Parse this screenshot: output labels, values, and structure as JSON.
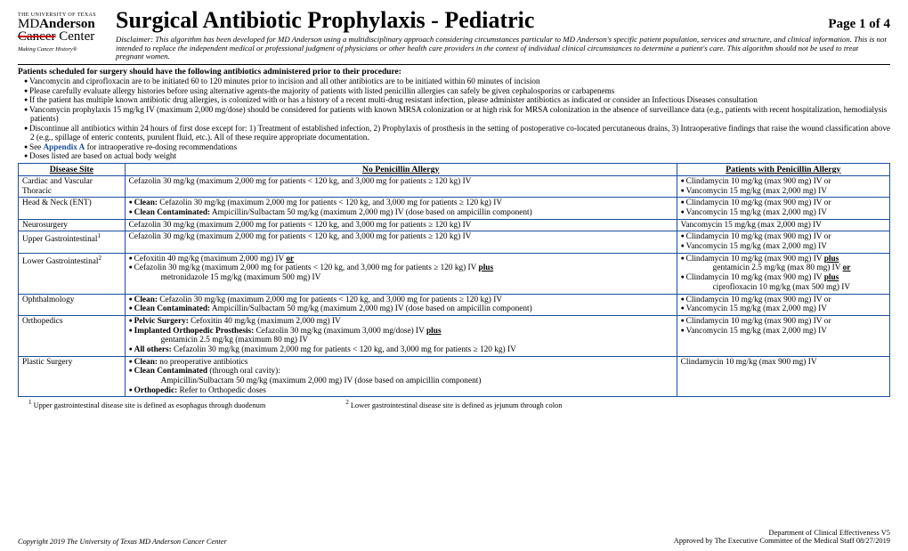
{
  "logo": {
    "university": "THE UNIVERSITY OF TEXAS",
    "line1_a": "MD",
    "line1_b": "Anderson",
    "line2_a": "Cancer",
    "line2_b": "Center",
    "tagline": "Making Cancer History®"
  },
  "title": "Surgical Antibiotic Prophylaxis - Pediatric",
  "page_label": "Page 1 of 4",
  "disclaimer": "Disclaimer: This algorithm has been developed for MD Anderson using a multidisciplinary approach considering circumstances particular to MD Anderson's specific patient population, services and structure, and clinical information. This is not intended to replace the independent medical or professional judgment of physicians or other health care providers in the context of individual clinical circumstances to determine a patient's care. This algorithm should not be used to treat pregnant women.",
  "pre": {
    "lead": "Patients scheduled for surgery should have the following antibiotics administered prior to their procedure:",
    "items": [
      "Vancomycin and ciprofloxacin are to be initiated 60 to 120 minutes prior to incision and all other antibiotics are to be initiated within 60 minutes of incision",
      "Please carefully evaluate allergy histories before using alternative agents-the majority of patients with listed penicillin allergies can safely be given cephalosporins or carbapenems",
      "If the patient has multiple known antibiotic drug allergies, is colonized with or has a history of a recent multi-drug resistant infection, please administer antibiotics as indicated or consider an Infectious Diseases consultation",
      "Vancomycin prophylaxis 15 mg/kg IV (maximum 2,000 mg/dose) should be considered for patients with known MRSA colonization or at high risk for MRSA colonization in the absence of surveillance data (e.g., patients with recent hospitalization, hemodialysis patients)",
      "Discontinue all antibiotics within 24 hours of first dose except for: 1) Treatment of established infection, 2) Prophylaxis of prosthesis in the setting of postoperative co-located percutaneous drains, 3) Intraoperative findings that raise the wound classification above 2 (e.g., spillage of enteric contents, purulent fluid, etc.). All of these require appropriate documentation."
    ],
    "appendix_pre": "See ",
    "appendix_link": "Appendix A",
    "appendix_post": " for intraoperative re-dosing recommendations",
    "last": "Doses listed are based on actual body weight"
  },
  "table": {
    "headers": [
      "Disease Site",
      "No Penicillin Allergy",
      "Patients with Penicillin Allergy"
    ],
    "rows": [
      {
        "site": "Cardiac and Vascular Thoracic",
        "np": "Cefazolin 30 mg/kg (maximum 2,000 mg for patients < 120 kg, and 3,000 mg for patients ≥ 120 kg) IV",
        "pa": [
          "Clindamycin 10 mg/kg (max 900 mg) IV or",
          "Vancomycin 15 mg/kg (max 2,000 mg) IV"
        ]
      },
      {
        "site": "Head & Neck (ENT)",
        "np_items": [
          {
            "label": "Clean:",
            "text": " Cefazolin 30 mg/kg (maximum 2,000 mg for patients < 120 kg, and 3,000 mg for patients ≥ 120 kg) IV"
          },
          {
            "label": "Clean Contaminated:",
            "text": " Ampicillin/Sulbactam 50 mg/kg (maximum 2,000 mg) IV (dose based on ampicillin component)"
          }
        ],
        "pa": [
          "Clindamycin 10 mg/kg (max 900 mg) IV or",
          "Vancomycin 15 mg/kg (max 2,000 mg) IV"
        ]
      },
      {
        "site": "Neurosurgery",
        "np": "Cefazolin 30 mg/kg (maximum 2,000 mg for patients < 120 kg, and 3,000 mg for patients ≥ 120 kg) IV",
        "pa_plain": "Vancomycin 15 mg/kg (max 2,000 mg) IV"
      },
      {
        "site_html": "Upper Gastrointestinal<sup>1</sup>",
        "np": "Cefazolin 30 mg/kg (maximum 2,000 mg for patients < 120 kg, and 3,000 mg for patients ≥ 120 kg) IV",
        "pa": [
          "Clindamycin 10 mg/kg (max 900 mg) IV or",
          "Vancomycin 15 mg/kg (max 2,000 mg) IV"
        ]
      },
      {
        "site_html": "Lower Gastrointestinal<sup>2</sup>",
        "np_html": "<ul class='bul'><li>Cefoxitin 40 mg/kg (maximum 2,000 mg) IV <b><span class='u'>or</span></b></li><li>Cefazolin 30 mg/kg (maximum 2,000 mg for patients < 120 kg, and 3,000 mg for patients ≥ 120 kg) IV <b><span class='u'>plus</span></b><span class='sub'>metronidazole 15 mg/kg (maximum 500 mg) IV</span></li></ul>",
        "pa_html": "<ul class='bul'><li>Clindamycin 10 mg/kg (max 900 mg) IV <b><span class='u'>plus</span></b><span class='sub'>gentamicin 2.5 mg/kg (max 80 mg) IV <b><span class='u'>or</span></b></span></li><li>Clindamycin 10 mg/kg (max 900 mg) IV <b><span class='u'>plus</span></b><span class='sub'>ciprofloxacin 10 mg/kg (max 500 mg) IV</span></li></ul>"
      },
      {
        "site": "Ophthalmology",
        "np_items": [
          {
            "label": "Clean:",
            "text": " Cefazolin 30 mg/kg (maximum 2,000 mg for patients < 120 kg, and 3,000 mg for patients ≥ 120 kg) IV"
          },
          {
            "label": "Clean Contaminated:",
            "text": " Ampicillin/Sulbactam 50 mg/kg (maximum 2,000 mg) IV (dose based on ampicillin component)"
          }
        ],
        "pa": [
          "Clindamycin 10 mg/kg (max 900 mg) IV or",
          "Vancomycin 15 mg/kg (max 2,000 mg) IV"
        ]
      },
      {
        "site": "Orthopedics",
        "np_html": "<ul class='bul'><li><b>Pelvic Surgery:</b> Cefoxitin 40 mg/kg (maximum 2,000 mg) IV</li><li><b>Implanted Orthopedic Prosthesis:</b> Cefazolin 30 mg/kg (maximum 3,000 mg/dose) IV <b><span class='u'>plus</span></b><span class='sub'>gentamicin 2.5 mg/kg (maximum 80 mg) IV</span></li><li><b>All others:</b> Cefazolin 30 mg/kg (maximum 2,000 mg for patients < 120 kg, and 3,000 mg for patients ≥ 120 kg) IV</li></ul>",
        "pa": [
          "Clindamycin 10 mg/kg (max 900 mg) IV or",
          "Vancomycin 15 mg/kg (max 2,000 mg) IV"
        ]
      },
      {
        "site": "Plastic Surgery",
        "np_html": "<ul class='bul'><li><b>Clean:</b> no preoperative antibiotics</li><li><b>Clean Contaminated</b> (through oral cavity):<span class='sub'>Ampicillin/Sulbactam 50 mg/kg (maximum 2,000 mg) IV (dose based on ampicillin component)</span></li><li><b>Orthopedic:</b> Refer to Orthopedic doses</li></ul>",
        "pa_plain": "Clindamycin 10 mg/kg (max 900 mg) IV"
      }
    ]
  },
  "footnotes": {
    "f1": "Upper gastrointestinal disease site is defined as esophagus through duodenum",
    "f2": "Lower gastrointestinal disease site is defined as jejunum through colon"
  },
  "footer": {
    "copyright": "Copyright 2019 The University of Texas MD Anderson Cancer Center",
    "dept": "Department of Clinical Effectiveness V5",
    "approved": "Approved by The Executive Committee of the Medical Staff 08/27/2019"
  },
  "style": {
    "border_color": "#1a4ea0",
    "link_color": "#1a4ea0",
    "strike_color": "#c00"
  }
}
